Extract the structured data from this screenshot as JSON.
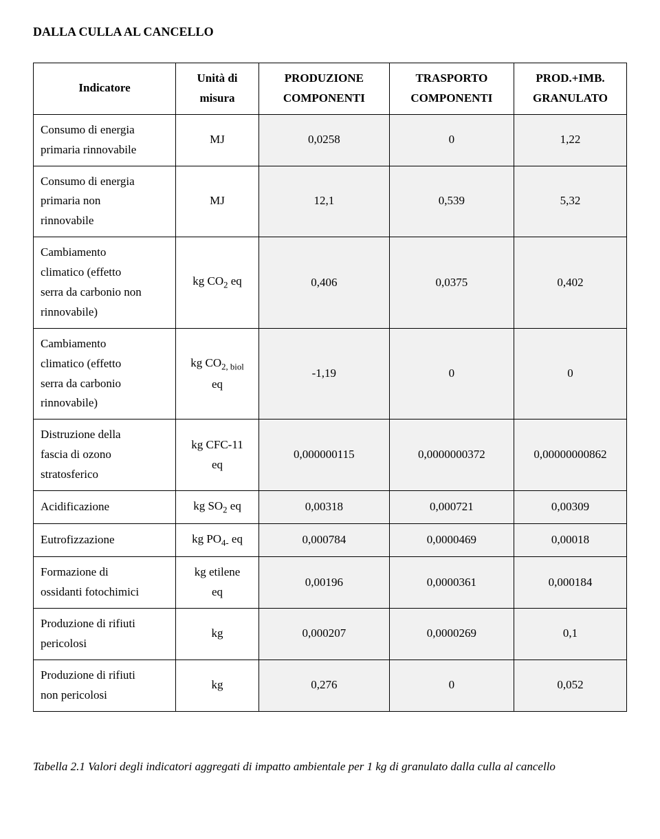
{
  "title": "DALLA CULLA AL CANCELLO",
  "columns": {
    "indicator": "Indicatore",
    "unit_l1": "Unità di",
    "unit_l2": "misura",
    "prod_l1": "PRODUZIONE",
    "prod_l2": "COMPONENTI",
    "trans_l1": "TRASPORTO",
    "trans_l2": "COMPONENTI",
    "gran_l1": "PROD.+IMB.",
    "gran_l2": "GRANULATO"
  },
  "rows": {
    "r0": {
      "label_l1": "Consumo di energia",
      "label_l2": "primaria rinnovabile",
      "unit": "MJ",
      "v1": "0,0258",
      "v2": "0",
      "v3": "1,22"
    },
    "r1": {
      "label_l1": "Consumo di energia",
      "label_l2": "primaria non",
      "label_l3": "rinnovabile",
      "unit": "MJ",
      "v1": "12,1",
      "v2": "0,539",
      "v3": "5,32"
    },
    "r2": {
      "label_l1": "Cambiamento",
      "label_l2": "climatico (effetto",
      "label_l3": "serra da carbonio non",
      "label_l4": "rinnovabile)",
      "unit_pre": "kg CO",
      "unit_sub": "2",
      "unit_post": " eq",
      "v1": "0,406",
      "v2": "0,0375",
      "v3": "0,402"
    },
    "r3": {
      "label_l1": "Cambiamento",
      "label_l2": "climatico (effetto",
      "label_l3": "serra da carbonio",
      "label_l4": "rinnovabile)",
      "unit_pre": "kg CO",
      "unit_sub": "2, biol",
      "unit_l2": "eq",
      "v1": "-1,19",
      "v2": "0",
      "v3": "0"
    },
    "r4": {
      "label_l1": "Distruzione della",
      "label_l2": "fascia di ozono",
      "label_l3": "stratosferico",
      "unit_l1": "kg CFC-11",
      "unit_l2": "eq",
      "v1": "0,000000115",
      "v2": "0,0000000372",
      "v3": "0,00000000862"
    },
    "r5": {
      "label": "Acidificazione",
      "unit_pre": "kg SO",
      "unit_sub": "2",
      "unit_post": " eq",
      "v1": "0,00318",
      "v2": "0,000721",
      "v3": "0,00309"
    },
    "r6": {
      "label": "Eutrofizzazione",
      "unit_pre": "kg PO",
      "unit_sub": "4-",
      "unit_post": " eq",
      "v1": "0,000784",
      "v2": "0,0000469",
      "v3": "0,00018"
    },
    "r7": {
      "label_l1": "Formazione di",
      "label_l2": "ossidanti fotochimici",
      "unit_l1": "kg etilene",
      "unit_l2": "eq",
      "v1": "0,00196",
      "v2": "0,0000361",
      "v3": "0,000184"
    },
    "r8": {
      "label_l1": "Produzione di rifiuti",
      "label_l2": "pericolosi",
      "unit": "kg",
      "v1": "0,000207",
      "v2": "0,0000269",
      "v3": "0,1"
    },
    "r9": {
      "label_l1": "Produzione di rifiuti",
      "label_l2": "non pericolosi",
      "unit": "kg",
      "v1": "0,276",
      "v2": "0",
      "v3": "0,052"
    }
  },
  "caption": "Tabella 2.1 Valori degli indicatori aggregati di impatto ambientale per 1 kg di granulato dalla culla al cancello"
}
